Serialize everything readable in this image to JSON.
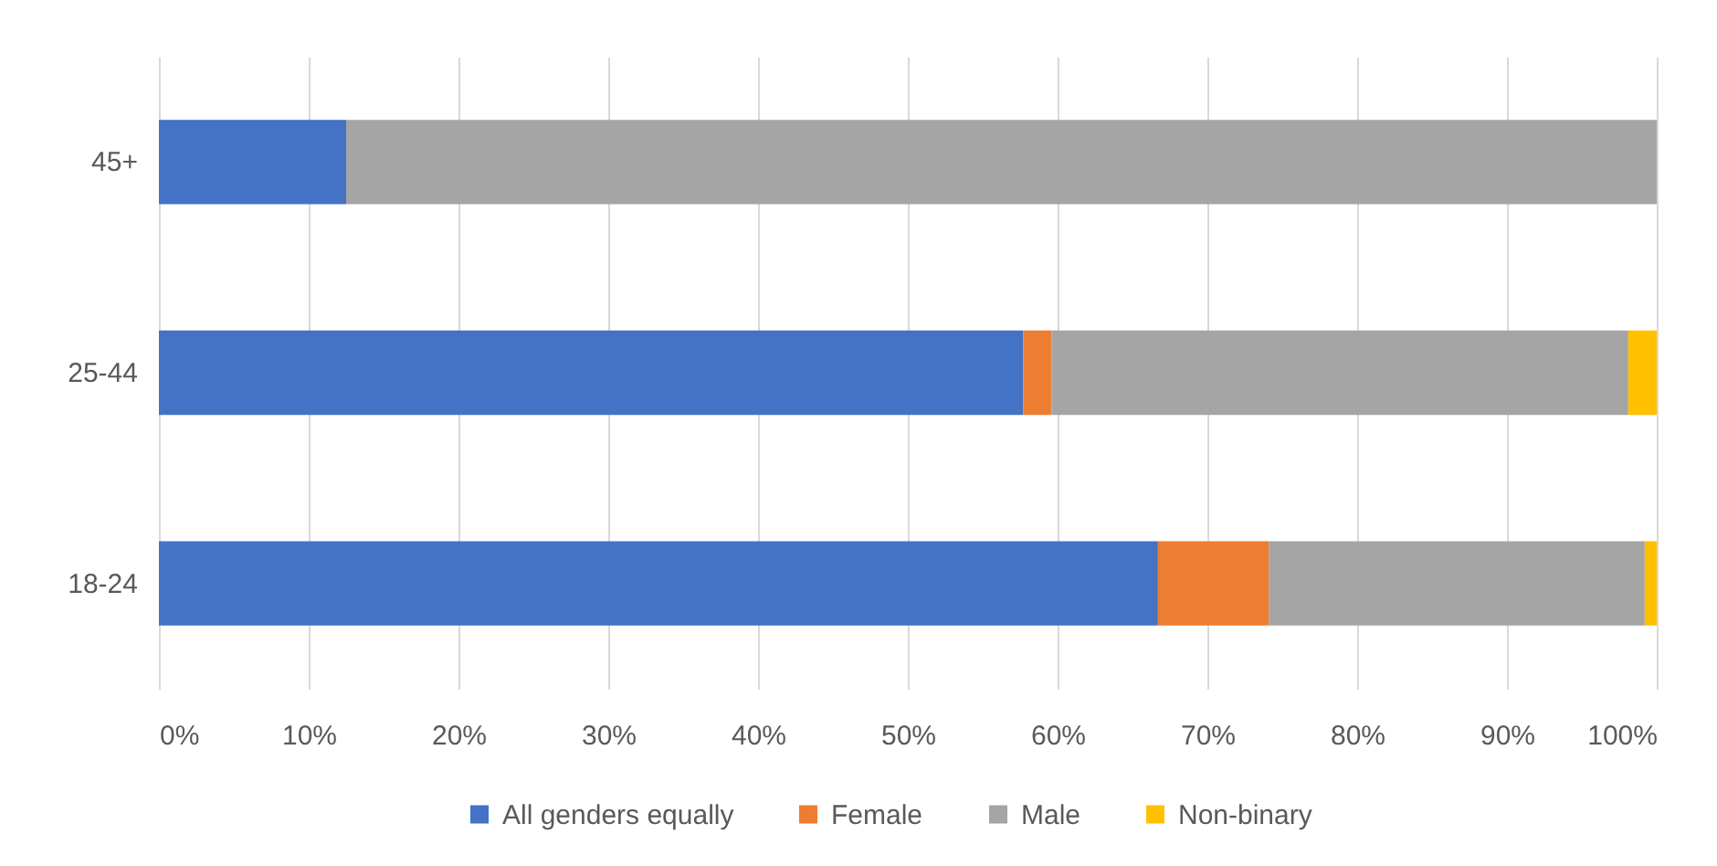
{
  "chart_data": {
    "type": "bar",
    "orientation": "horizontal",
    "stacked": true,
    "categories": [
      "45+",
      "25-44",
      "18-24"
    ],
    "series": [
      {
        "name": "All genders equally",
        "color": "#4472c4",
        "values": [
          12.5,
          57.7,
          66.7
        ]
      },
      {
        "name": "Female",
        "color": "#ed7d31",
        "values": [
          null,
          1.9,
          7.4
        ]
      },
      {
        "name": "Male",
        "color": "#a5a5a5",
        "values": [
          87.5,
          38.5,
          25.1
        ]
      },
      {
        "name": "Non-binary",
        "color": "#ffc000",
        "values": [
          null,
          1.9,
          0.8
        ]
      }
    ],
    "xlim": [
      0,
      100
    ],
    "xticks": [
      {
        "value": 0,
        "label": "0%"
      },
      {
        "value": 10,
        "label": "10%"
      },
      {
        "value": 20,
        "label": "20%"
      },
      {
        "value": 30,
        "label": "30%"
      },
      {
        "value": 40,
        "label": "40%"
      },
      {
        "value": 50,
        "label": "50%"
      },
      {
        "value": 60,
        "label": "60%"
      },
      {
        "value": 70,
        "label": "70%"
      },
      {
        "value": 80,
        "label": "80%"
      },
      {
        "value": 90,
        "label": "90%"
      },
      {
        "value": 100,
        "label": "100%"
      }
    ],
    "grid": "x",
    "legend": "bottom"
  }
}
